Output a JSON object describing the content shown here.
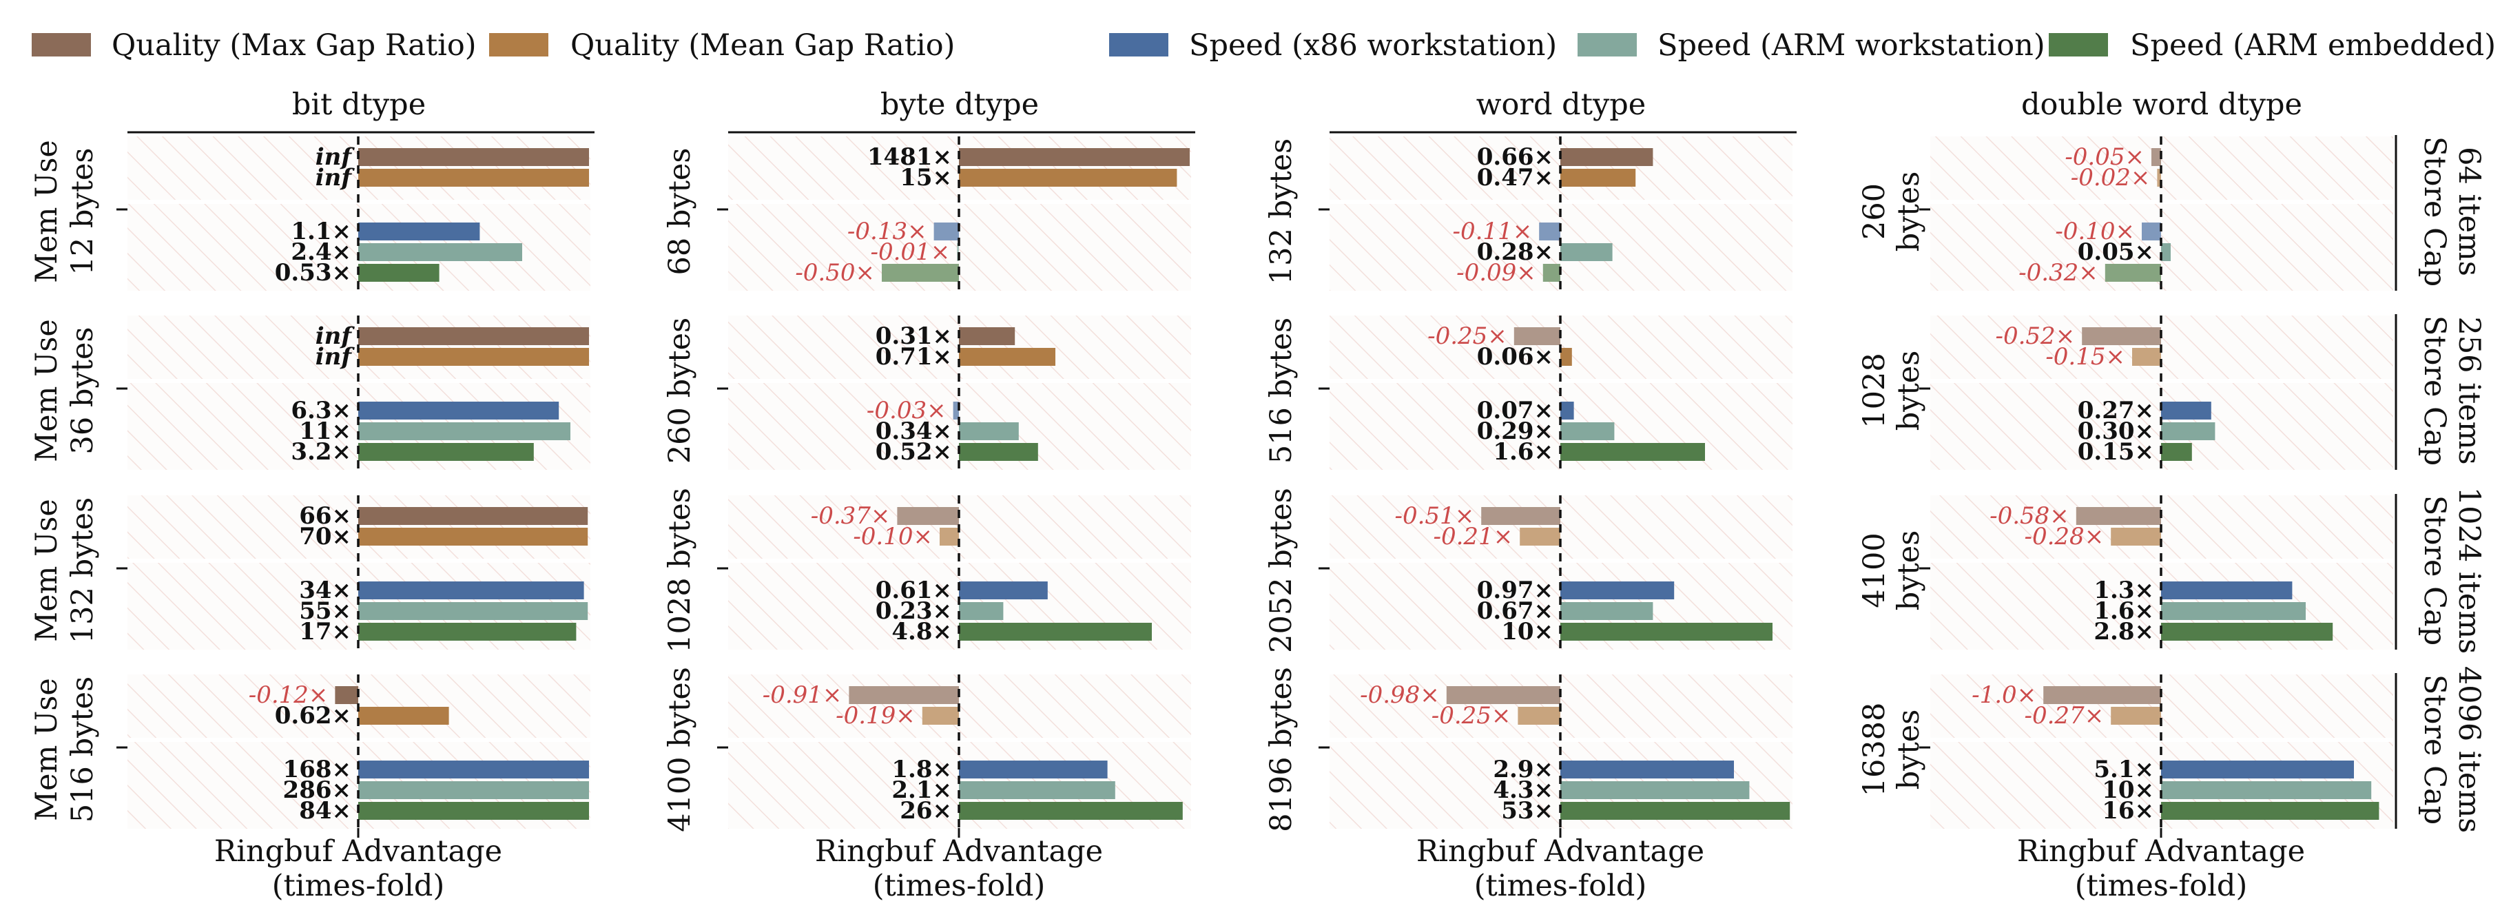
{
  "colors": {
    "quality_max": "#8b6b58",
    "quality_mean": "#b07d46",
    "speed_x86": "#4a6d9f",
    "speed_arm_ws": "#84a89d",
    "speed_arm_emb": "#527d4a",
    "negative_text": "#cc4b4b",
    "positive_text": "#111111"
  },
  "legend": [
    {
      "key": "quality_max",
      "label": "Quality (Max Gap Ratio)"
    },
    {
      "key": "quality_mean",
      "label": "Quality (Mean Gap Ratio)"
    },
    {
      "key": "speed_x86",
      "label": "Speed (x86 workstation)"
    },
    {
      "key": "speed_arm_ws",
      "label": "Speed (ARM workstation)"
    },
    {
      "key": "speed_arm_emb",
      "label": "Speed (ARM embedded)"
    }
  ],
  "chart_data": {
    "type": "bar",
    "orientation": "horizontal",
    "xlabel": "Ringbuf Advantage\n(times-fold)",
    "series": [
      "Quality (Max Gap Ratio)",
      "Quality (Mean Gap Ratio)",
      "Speed (x86 workstation)",
      "Speed (ARM workstation)",
      "Speed (ARM embedded)"
    ],
    "columns": [
      "bit dtype",
      "byte dtype",
      "word dtype",
      "double word dtype"
    ],
    "rows": [
      {
        "label": "Store Cap\n64 items",
        "left_label": "Mem Use"
      },
      {
        "label": "Store Cap\n256 items",
        "left_label": "Mem Use"
      },
      {
        "label": "Store Cap\n1024 items",
        "left_label": "Mem Use"
      },
      {
        "label": "Store Cap\n4096 items",
        "left_label": "Mem Use"
      }
    ],
    "panels": [
      [
        {
          "mem": "12 bytes",
          "quality": [
            {
              "label": "inf",
              "x": 1.2,
              "clip": true
            },
            {
              "label": "inf",
              "x": 1.2,
              "clip": true
            }
          ],
          "speed": [
            {
              "label": "1.1×",
              "x": 0.63
            },
            {
              "label": "2.4×",
              "x": 0.85
            },
            {
              "label": "0.53×",
              "x": 0.42
            }
          ]
        },
        {
          "mem": "36 bytes",
          "quality": [
            {
              "label": "inf",
              "x": 1.2,
              "clip": true
            },
            {
              "label": "inf",
              "x": 1.2,
              "clip": true
            }
          ],
          "speed": [
            {
              "label": "6.3×",
              "x": 1.04
            },
            {
              "label": "11×",
              "x": 1.1
            },
            {
              "label": "3.2×",
              "x": 0.91
            }
          ]
        },
        {
          "mem": "132 bytes",
          "quality": [
            {
              "label": "66×",
              "x": 1.19
            },
            {
              "label": "70×",
              "x": 1.19
            }
          ],
          "speed": [
            {
              "label": "34×",
              "x": 1.17
            },
            {
              "label": "55×",
              "x": 1.19
            },
            {
              "label": "17×",
              "x": 1.13
            }
          ]
        },
        {
          "mem": "516 bytes",
          "quality": [
            {
              "label": "-0.12×",
              "x": -0.12
            },
            {
              "label": "0.62×",
              "x": 0.47
            }
          ],
          "speed": [
            {
              "label": "168×",
              "x": 1.2
            },
            {
              "label": "286×",
              "x": 1.2
            },
            {
              "label": "84×",
              "x": 1.2
            }
          ]
        }
      ],
      [
        {
          "mem": "68 bytes",
          "quality": [
            {
              "label": "1481×",
              "x": 1.2
            },
            {
              "label": "15×",
              "x": 1.13
            }
          ],
          "speed": [
            {
              "label": "-0.13×",
              "x": -0.13,
              "faded": true
            },
            {
              "label": "-0.01×",
              "x": -0.01,
              "faded": true
            },
            {
              "label": "-0.50×",
              "x": -0.4,
              "faded": true
            }
          ]
        },
        {
          "mem": "260 bytes",
          "quality": [
            {
              "label": "0.31×",
              "x": 0.29
            },
            {
              "label": "0.71×",
              "x": 0.5
            }
          ],
          "speed": [
            {
              "label": "-0.03×",
              "x": -0.03,
              "faded": true
            },
            {
              "label": "0.34×",
              "x": 0.31
            },
            {
              "label": "0.52×",
              "x": 0.41
            }
          ]
        },
        {
          "mem": "1028 bytes",
          "quality": [
            {
              "label": "-0.37×",
              "x": -0.32,
              "faded": true
            },
            {
              "label": "-0.10×",
              "x": -0.1,
              "faded": true
            }
          ],
          "speed": [
            {
              "label": "0.61×",
              "x": 0.46
            },
            {
              "label": "0.23×",
              "x": 0.23
            },
            {
              "label": "4.8×",
              "x": 1.0
            }
          ]
        },
        {
          "mem": "4100 bytes",
          "quality": [
            {
              "label": "-0.91×",
              "x": -0.57,
              "faded": true
            },
            {
              "label": "-0.19×",
              "x": -0.19,
              "faded": true
            }
          ],
          "speed": [
            {
              "label": "1.8×",
              "x": 0.77
            },
            {
              "label": "2.1×",
              "x": 0.81
            },
            {
              "label": "26×",
              "x": 1.16
            }
          ]
        }
      ],
      [
        {
          "mem": "132 bytes",
          "quality": [
            {
              "label": "0.66×",
              "x": 0.48
            },
            {
              "label": "0.47×",
              "x": 0.39
            }
          ],
          "speed": [
            {
              "label": "-0.11×",
              "x": -0.11,
              "faded": true
            },
            {
              "label": "0.28×",
              "x": 0.27
            },
            {
              "label": "-0.09×",
              "x": -0.09,
              "faded": true
            }
          ]
        },
        {
          "mem": "516 bytes",
          "quality": [
            {
              "label": "-0.25×",
              "x": -0.24,
              "faded": true
            },
            {
              "label": "0.06×",
              "x": 0.06
            }
          ],
          "speed": [
            {
              "label": "0.07×",
              "x": 0.07
            },
            {
              "label": "0.29×",
              "x": 0.28
            },
            {
              "label": "1.6×",
              "x": 0.75
            }
          ]
        },
        {
          "mem": "2052 bytes",
          "quality": [
            {
              "label": "-0.51×",
              "x": -0.41,
              "faded": true
            },
            {
              "label": "-0.21×",
              "x": -0.21,
              "faded": true
            }
          ],
          "speed": [
            {
              "label": "0.97×",
              "x": 0.59
            },
            {
              "label": "0.67×",
              "x": 0.48
            },
            {
              "label": "10×",
              "x": 1.1
            }
          ]
        },
        {
          "mem": "8196 bytes",
          "quality": [
            {
              "label": "-0.98×",
              "x": -0.59,
              "faded": true
            },
            {
              "label": "-0.25×",
              "x": -0.22,
              "faded": true
            }
          ],
          "speed": [
            {
              "label": "2.9×",
              "x": 0.9
            },
            {
              "label": "4.3×",
              "x": 0.98
            },
            {
              "label": "53×",
              "x": 1.19
            }
          ]
        }
      ],
      [
        {
          "mem": "260\nbytes",
          "quality": [
            {
              "label": "-0.05×",
              "x": -0.05,
              "faded": true
            },
            {
              "label": "-0.02×",
              "x": -0.02,
              "faded": true
            }
          ],
          "speed": [
            {
              "label": "-0.10×",
              "x": -0.1,
              "faded": true
            },
            {
              "label": "0.05×",
              "x": 0.05
            },
            {
              "label": "-0.32×",
              "x": -0.29,
              "faded": true
            }
          ]
        },
        {
          "mem": "1028\nbytes",
          "quality": [
            {
              "label": "-0.52×",
              "x": -0.41,
              "faded": true
            },
            {
              "label": "-0.15×",
              "x": -0.15,
              "faded": true
            }
          ],
          "speed": [
            {
              "label": "0.27×",
              "x": 0.26
            },
            {
              "label": "0.30×",
              "x": 0.28
            },
            {
              "label": "0.15×",
              "x": 0.16
            }
          ]
        },
        {
          "mem": "4100\nbytes",
          "quality": [
            {
              "label": "-0.58×",
              "x": -0.44,
              "faded": true
            },
            {
              "label": "-0.28×",
              "x": -0.26,
              "faded": true
            }
          ],
          "speed": [
            {
              "label": "1.3×",
              "x": 0.68
            },
            {
              "label": "1.6×",
              "x": 0.75
            },
            {
              "label": "2.8×",
              "x": 0.89
            }
          ]
        },
        {
          "mem": "16388\nbytes",
          "quality": [
            {
              "label": "-1.0×",
              "x": -0.61,
              "faded": true
            },
            {
              "label": "-0.27×",
              "x": -0.26,
              "faded": true
            }
          ],
          "speed": [
            {
              "label": "5.1×",
              "x": 1.0
            },
            {
              "label": "10×",
              "x": 1.09
            },
            {
              "label": "16×",
              "x": 1.13
            }
          ]
        }
      ]
    ]
  }
}
